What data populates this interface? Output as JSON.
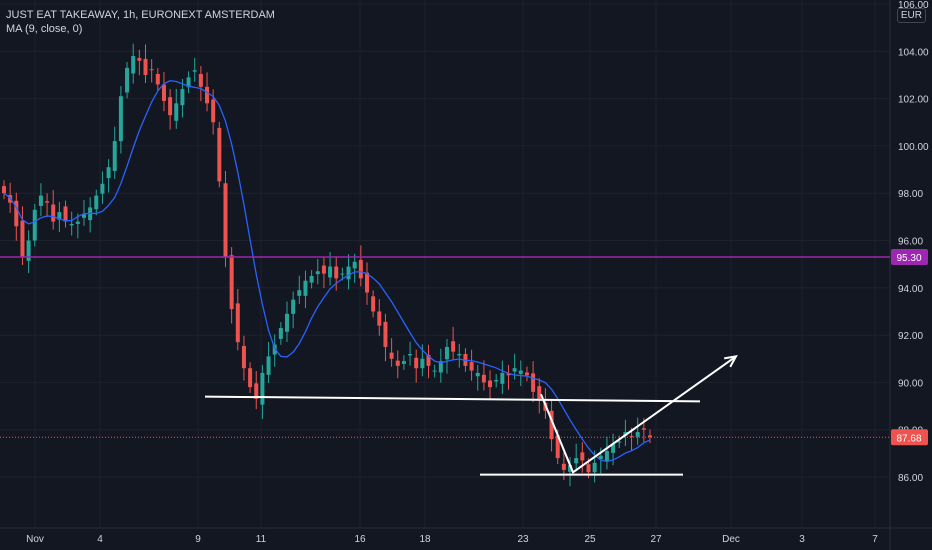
{
  "header": {
    "title": "JUST EAT TAKEAWAY, 1h, EURONEXT AMSTERDAM",
    "indicator": "MA (9, close, 0)"
  },
  "currency": "EUR",
  "colors": {
    "background": "#131722",
    "up": "#26a69a",
    "down": "#ef5350",
    "ma": "#2962ff",
    "level_line": "#9c27b0",
    "drawing": "#ffffff",
    "grid": "#1e222d",
    "text": "#d1d4dc"
  },
  "chart_data": {
    "type": "candlestick",
    "symbol": "JUST EAT TAKEAWAY",
    "interval": "1h",
    "exchange": "EURONEXT AMSTERDAM",
    "ylim": [
      84.8,
      106.4
    ],
    "y_ticks": [
      "86.00",
      "88.00",
      "90.00",
      "92.00",
      "94.00",
      "96.00",
      "98.00",
      "100.00",
      "102.00",
      "104.00",
      "106.00"
    ],
    "x_ticks": [
      "Nov",
      "4",
      "9",
      "11",
      "16",
      "18",
      "23",
      "25",
      "27",
      "Dec",
      "3",
      "7"
    ],
    "last_price": "87.68",
    "horizontal_level": "95.30",
    "closes": [
      98.0,
      97.6,
      96.6,
      95.3,
      96.0,
      97.3,
      97.9,
      97.6,
      96.8,
      97.2,
      96.8,
      96.7,
      96.8,
      97.1,
      97.4,
      97.9,
      98.4,
      99.1,
      100.2,
      102.1,
      103.3,
      103.8,
      103.6,
      103.0,
      103.2,
      102.6,
      101.9,
      101.3,
      101.8,
      102.4,
      102.9,
      103.2,
      102.5,
      101.8,
      101.0,
      98.5,
      95.3,
      93.1,
      91.7,
      90.6,
      89.8,
      89.3,
      90.4,
      91.1,
      91.6,
      92.3,
      92.9,
      93.5,
      93.9,
      94.3,
      94.5,
      94.7,
      94.6,
      94.9,
      94.4,
      94.6,
      94.9,
      95.1,
      94.4,
      93.8,
      93.0,
      92.4,
      91.5,
      91.0,
      90.7,
      90.9,
      91.2,
      90.6,
      91.0,
      90.7,
      90.5,
      90.9,
      91.5,
      91.3,
      91.2,
      90.7,
      90.5,
      90.4,
      90.0,
      89.8,
      90.1,
      90.4,
      90.3,
      90.6,
      90.5,
      90.3,
      89.6,
      89.3,
      88.8,
      87.6,
      86.8,
      86.3,
      86.5,
      86.8,
      86.7,
      86.2,
      86.6,
      86.9,
      87.1,
      87.4,
      87.5,
      87.9,
      87.7,
      87.9,
      88.0,
      87.68
    ],
    "ma_period": 9,
    "annotations": [
      {
        "kind": "support_line",
        "price_from": 89.4,
        "price_to": 89.2
      },
      {
        "kind": "support_line",
        "price_from": 86.1,
        "price_to": 86.1
      },
      {
        "kind": "arrow_path",
        "prices": [
          89.5,
          86.2,
          91.1
        ]
      }
    ]
  }
}
